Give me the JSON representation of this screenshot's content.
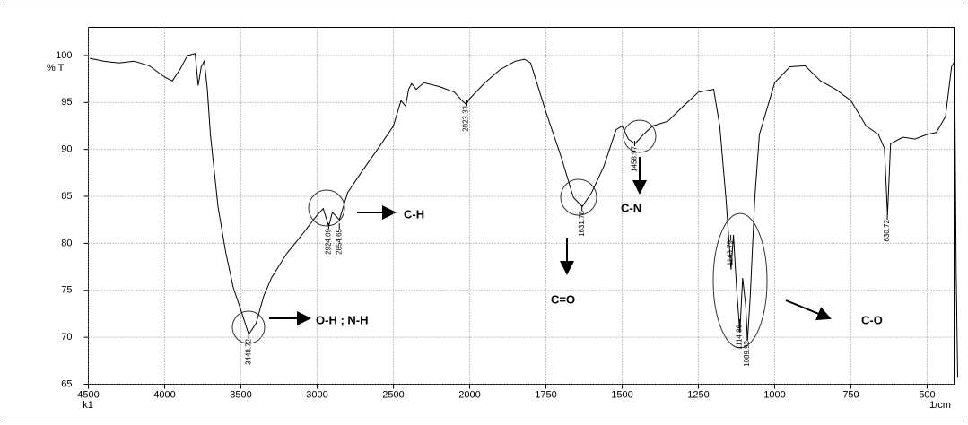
{
  "chart_data": {
    "type": "line",
    "y_label": "% T",
    "x_label": "1/cm",
    "x_corner_label": "k1",
    "x": [
      4490,
      4400,
      4300,
      4200,
      4100,
      4000,
      3950,
      3900,
      3850,
      3800,
      3780,
      3760,
      3740,
      3720,
      3700,
      3650,
      3600,
      3550,
      3500,
      3448,
      3400,
      3350,
      3300,
      3200,
      3100,
      3000,
      2960,
      2924,
      2900,
      2854,
      2800,
      2700,
      2600,
      2500,
      2450,
      2420,
      2400,
      2380,
      2350,
      2300,
      2200,
      2100,
      2050,
      2023,
      2000,
      1950,
      1900,
      1850,
      1820,
      1800,
      1750,
      1700,
      1660,
      1631,
      1600,
      1560,
      1520,
      1500,
      1480,
      1458,
      1430,
      1400,
      1350,
      1300,
      1250,
      1200,
      1180,
      1160,
      1143,
      1135,
      1125,
      1114,
      1105,
      1095,
      1089,
      1080,
      1065,
      1050,
      1000,
      950,
      900,
      850,
      800,
      750,
      700,
      660,
      640,
      630,
      620,
      580,
      540,
      500,
      470,
      440,
      420,
      410,
      405,
      400
    ],
    "values": [
      99.7,
      99.4,
      99.2,
      99.4,
      98.9,
      97.7,
      97.3,
      98.5,
      100,
      100.2,
      96.8,
      98.8,
      99.4,
      96.4,
      91.6,
      83.9,
      79.1,
      75.3,
      72.9,
      70.3,
      71.5,
      74.4,
      76.3,
      78.9,
      80.9,
      83.0,
      83.7,
      81.8,
      83.3,
      82.5,
      85.4,
      87.8,
      90.1,
      92.5,
      95.2,
      94.6,
      96.4,
      97.0,
      96.4,
      97.1,
      96.7,
      96.1,
      95.2,
      94.8,
      95.4,
      97.1,
      98.5,
      99.4,
      99.6,
      99.2,
      94.0,
      89.2,
      84.9,
      83.9,
      85.4,
      88.2,
      92.1,
      92.5,
      91.1,
      90.6,
      91.6,
      92.5,
      93.0,
      94.6,
      96.1,
      96.4,
      92.5,
      84.9,
      77.2,
      80.9,
      75.3,
      70.5,
      76.3,
      73.4,
      69.6,
      74.4,
      84.9,
      91.6,
      97.1,
      98.8,
      98.9,
      97.3,
      96.4,
      95.2,
      92.5,
      91.6,
      90.1,
      83.0,
      90.6,
      91.3,
      91.1,
      91.6,
      91.8,
      93.5,
      98.8,
      99.4,
      77.2,
      65.7
    ],
    "color": "#000000",
    "xlim": [
      4500,
      400
    ],
    "ylim": [
      65,
      103
    ],
    "xticks": [
      4500,
      4000,
      3500,
      3000,
      2500,
      2000,
      1750,
      1500,
      1250,
      1000,
      750,
      500
    ],
    "yticks": [
      65,
      70,
      75,
      80,
      85,
      90,
      95,
      100
    ],
    "grid": true,
    "peaks": [
      3448.72,
      2924.09,
      2854.65,
      2023.33,
      1631.78,
      1458.97,
      1143.79,
      1114.86,
      1089.92,
      630.72
    ],
    "annotations": [
      "O-H ; N-H",
      "C-H",
      "C=O",
      "C-N",
      "C-O"
    ]
  }
}
